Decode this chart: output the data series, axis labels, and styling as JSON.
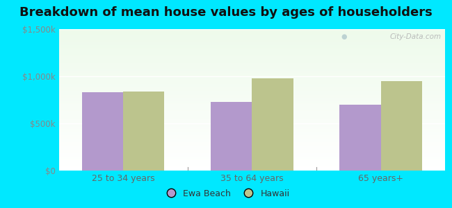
{
  "title": "Breakdown of mean house values by ages of householders",
  "categories": [
    "25 to 34 years",
    "35 to 64 years",
    "65 years+"
  ],
  "ewa_beach_values": [
    830000,
    730000,
    700000
  ],
  "hawaii_values": [
    840000,
    975000,
    945000
  ],
  "ewa_beach_color": "#b399cc",
  "hawaii_color": "#bcc48d",
  "ylim": [
    0,
    1500000
  ],
  "yticks": [
    0,
    500000,
    1000000,
    1500000
  ],
  "ytick_labels": [
    "$0",
    "$500k",
    "$1,000k",
    "$1,500k"
  ],
  "background_outer": "#00e8ff",
  "title_fontsize": 13,
  "legend_labels": [
    "Ewa Beach",
    "Hawaii"
  ],
  "watermark": "City-Data.com",
  "bar_width": 0.32
}
